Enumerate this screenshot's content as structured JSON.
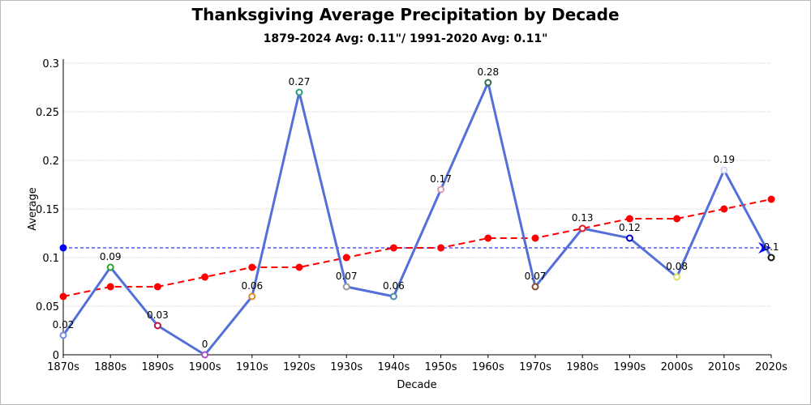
{
  "chart_data": {
    "type": "line",
    "title": "Thanksgiving Average Precipitation by Decade",
    "subtitle": "1879-2024 Avg: 0.11\"/ 1991-2020 Avg: 0.11\"",
    "xlabel": "Decade",
    "ylabel": "Average",
    "ylim": [
      0,
      0.3
    ],
    "yticks": [
      0,
      0.05,
      0.1,
      0.15,
      0.2,
      0.25,
      0.3
    ],
    "ytick_labels": [
      "0",
      "0.05",
      "0.1",
      "0.15",
      "0.2",
      "0.25",
      "0.3"
    ],
    "grid": true,
    "categories": [
      "1870s",
      "1880s",
      "1890s",
      "1900s",
      "1910s",
      "1920s",
      "1930s",
      "1940s",
      "1950s",
      "1960s",
      "1970s",
      "1980s",
      "1990s",
      "2000s",
      "2010s",
      "2020s"
    ],
    "series": [
      {
        "type": "line",
        "color": "#5470d8",
        "values": [
          0.02,
          0.09,
          0.03,
          0,
          0.06,
          0.27,
          0.07,
          0.06,
          0.17,
          0.28,
          0.07,
          0.13,
          0.12,
          0.08,
          0.19,
          0.1
        ],
        "data_labels": [
          "0.02",
          "0.09",
          "0.03",
          "0",
          "0.06",
          "0.27",
          "0.07",
          "0.06",
          "0.17",
          "0.28",
          "0.07",
          "0.13",
          "0.12",
          "0.08",
          "0.19",
          "0.1"
        ],
        "marker_colors": [
          "#6f8fd8",
          "#2ca02c",
          "#c0143c",
          "#b050c0",
          "#e08a1e",
          "#2a9a8a",
          "#999999",
          "#4a8aa8",
          "#d89aa8",
          "#2e6a4a",
          "#8b4a2a",
          "#e02020",
          "#0000cc",
          "#e0e060",
          "#d8d8f0",
          "#111111"
        ]
      },
      {
        "type": "trend",
        "color": "#ff0000",
        "dashed": true,
        "values": [
          0.06,
          0.07,
          0.07,
          0.08,
          0.09,
          0.09,
          0.1,
          0.11,
          0.11,
          0.12,
          0.12,
          0.13,
          0.14,
          0.14,
          0.15,
          0.16
        ]
      },
      {
        "type": "average-line",
        "color": "#0000ff",
        "dashed": true,
        "value": 0.11
      }
    ]
  }
}
